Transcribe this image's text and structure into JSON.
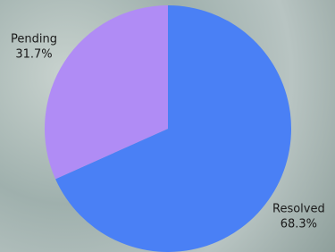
{
  "chart_data": {
    "type": "pie",
    "categories": [
      "Resolved",
      "Pending"
    ],
    "values": [
      68.3,
      31.7
    ],
    "value_labels": [
      "68.3%",
      "31.7%"
    ],
    "colors": [
      "#4a80f5",
      "#b08cf5"
    ]
  }
}
